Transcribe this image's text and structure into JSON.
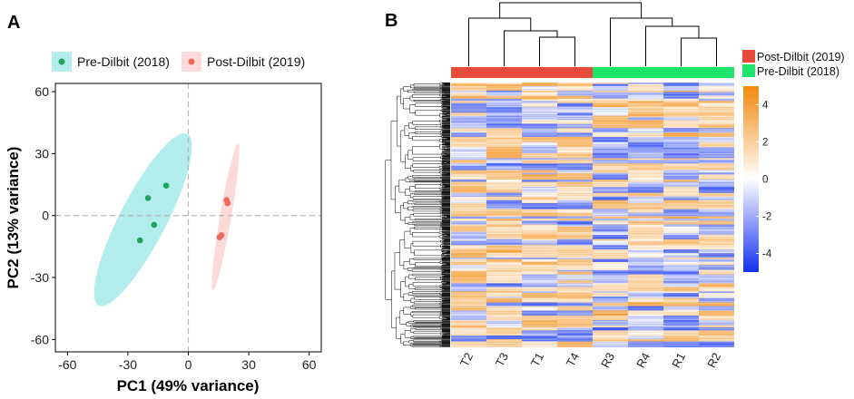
{
  "chart_data": [
    {
      "panel": "A",
      "type": "scatter",
      "xlabel": "PC1 (49% variance)",
      "ylabel": "PC2 (13% variance)",
      "xlim": [
        -66,
        66
      ],
      "ylim": [
        -66,
        64
      ],
      "xticks": [
        -60,
        -30,
        0,
        30,
        60
      ],
      "yticks": [
        60,
        30,
        0,
        -30,
        -60
      ],
      "grid": false,
      "reference_lines": {
        "x": 0,
        "y": 0,
        "style": "dashed"
      },
      "legend_position": "top",
      "series": [
        {
          "name": "Pre-Dilbit (2018)",
          "color": "#1ea35f",
          "ellipse_color": "#b3ecec",
          "points": [
            [
              -20,
              8.5
            ],
            [
              -11,
              14.5
            ],
            [
              -17,
              -4.5
            ],
            [
              -24,
              -12
            ]
          ],
          "ellipse": {
            "center": [
              -22.5,
              -2
            ],
            "semi_major": 47,
            "semi_minor": 11.5,
            "angle_deg": 62
          }
        },
        {
          "name": "Post-Dilbit (2019)",
          "color": "#f0685a",
          "ellipse_color": "#fbdad8",
          "points": [
            [
              19,
              7.5
            ],
            [
              19.5,
              6
            ],
            [
              16.5,
              -9.5
            ],
            [
              15.5,
              -10.5
            ]
          ],
          "ellipse": {
            "center": [
              18.5,
              -0.5
            ],
            "semi_major": 36,
            "semi_minor": 2.8,
            "angle_deg": 80
          }
        }
      ]
    },
    {
      "panel": "B",
      "type": "heatmap",
      "columns": [
        "T2",
        "T3",
        "T1",
        "T4",
        "R3",
        "R4",
        "R1",
        "R2"
      ],
      "column_groups": [
        {
          "name": "Post-Dilbit (2019)",
          "color": "#e84a3a",
          "columns": [
            "T2",
            "T3",
            "T1",
            "T4"
          ]
        },
        {
          "name": "Pre-Dilbit (2018)",
          "color": "#20e36c",
          "columns": [
            "R3",
            "R4",
            "R1",
            "R2"
          ]
        }
      ],
      "color_scale": {
        "min": -5,
        "max": 5,
        "low": "#1030f0",
        "mid": "#ffffff",
        "high": "#f2890c"
      },
      "colorbar_ticks": [
        4,
        2,
        0,
        -2,
        -4
      ],
      "n_rows": 360,
      "row_dendrogram": true,
      "column_dendrogram": true
    }
  ],
  "labels": {
    "panel_a": "A",
    "panel_b": "B"
  }
}
